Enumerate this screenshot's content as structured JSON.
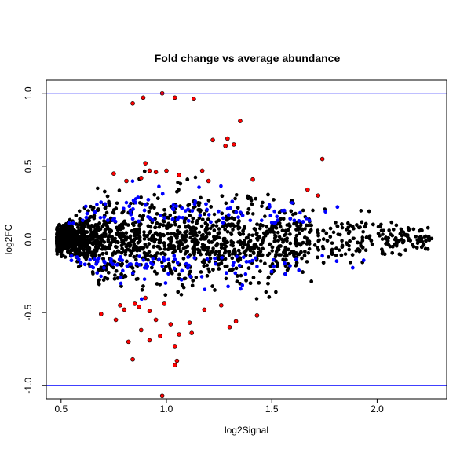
{
  "chart_data": {
    "type": "scatter",
    "title": "Fold change vs average abundance",
    "xlabel": "log2Signal",
    "ylabel": "log2FC",
    "xlim": [
      0.43,
      2.33
    ],
    "ylim": [
      -1.09,
      1.09
    ],
    "x_ticks": [
      0.5,
      1.0,
      1.5,
      2.0
    ],
    "x_tick_labels": [
      "0.5",
      "1.0",
      "1.5",
      "2.0"
    ],
    "y_ticks": [
      -1.0,
      -0.5,
      0.0,
      0.5,
      1.0
    ],
    "y_tick_labels": [
      "-1.0",
      "-0.5",
      "0.0",
      "0.5",
      "1.0"
    ],
    "reference_lines": [
      {
        "axis": "y",
        "value": 1.0,
        "color": "#0000ff"
      },
      {
        "axis": "y",
        "value": -1.0,
        "color": "#0000ff"
      }
    ],
    "grid": false,
    "colors": {
      "base": "#000000",
      "mid": "#0000ff",
      "high": "#ff0000"
    },
    "series": [
      {
        "color": "#ff0000",
        "points": [
          [
            0.98,
            1.0
          ],
          [
            0.89,
            0.97
          ],
          [
            1.04,
            0.97
          ],
          [
            1.13,
            0.96
          ],
          [
            0.84,
            0.93
          ],
          [
            1.35,
            0.81
          ],
          [
            1.29,
            0.69
          ],
          [
            1.22,
            0.68
          ],
          [
            1.32,
            0.65
          ],
          [
            1.28,
            0.64
          ],
          [
            1.74,
            0.55
          ],
          [
            0.92,
            0.47
          ],
          [
            0.95,
            0.46
          ],
          [
            1.0,
            0.47
          ],
          [
            1.17,
            0.47
          ],
          [
            0.9,
            0.52
          ],
          [
            1.2,
            0.4
          ],
          [
            1.41,
            0.41
          ],
          [
            0.75,
            0.45
          ],
          [
            0.88,
            0.42
          ],
          [
            1.06,
            0.44
          ],
          [
            1.67,
            0.34
          ],
          [
            1.72,
            0.3
          ],
          [
            0.81,
            0.4
          ],
          [
            0.69,
            -0.51
          ],
          [
            0.78,
            -0.45
          ],
          [
            0.85,
            -0.44
          ],
          [
            0.92,
            -0.49
          ],
          [
            0.95,
            -0.55
          ],
          [
            1.02,
            -0.58
          ],
          [
            0.88,
            -0.62
          ],
          [
            0.97,
            -0.66
          ],
          [
            1.06,
            -0.65
          ],
          [
            0.82,
            -0.7
          ],
          [
            0.92,
            -0.69
          ],
          [
            1.04,
            -0.73
          ],
          [
            1.12,
            -0.64
          ],
          [
            1.05,
            -0.83
          ],
          [
            0.84,
            -0.82
          ],
          [
            1.04,
            -0.86
          ],
          [
            0.98,
            -1.07
          ],
          [
            1.33,
            -0.56
          ],
          [
            1.43,
            -0.52
          ],
          [
            0.76,
            -0.55
          ],
          [
            1.26,
            -0.45
          ],
          [
            0.99,
            -0.44
          ],
          [
            0.87,
            -0.46
          ],
          [
            0.8,
            -0.48
          ],
          [
            0.9,
            -0.4
          ],
          [
            1.18,
            -0.48
          ],
          [
            1.3,
            -0.6
          ],
          [
            1.11,
            -0.57
          ]
        ]
      }
    ]
  }
}
